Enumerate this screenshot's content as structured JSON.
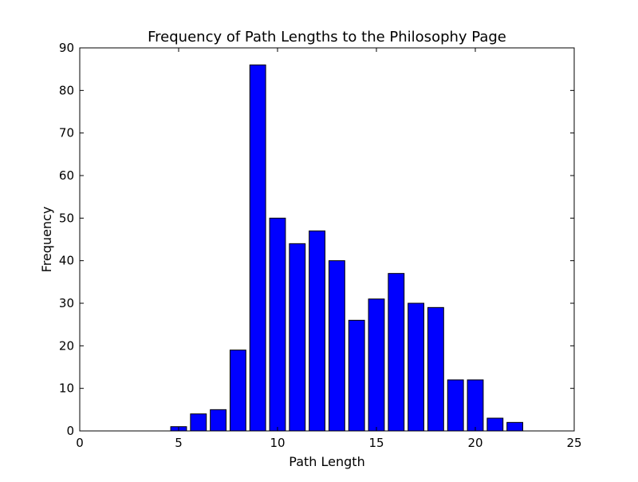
{
  "chart_data": {
    "type": "bar",
    "title": "Frequency of Path Lengths to the Philosophy Page",
    "xlabel": "Path Length",
    "ylabel": "Frequency",
    "x": [
      5,
      6,
      7,
      8,
      9,
      10,
      11,
      12,
      13,
      14,
      15,
      16,
      17,
      18,
      19,
      20,
      21,
      22
    ],
    "values": [
      1,
      4,
      5,
      19,
      86,
      50,
      44,
      47,
      40,
      26,
      31,
      37,
      30,
      29,
      12,
      12,
      3,
      2
    ],
    "xlim": [
      0,
      25
    ],
    "ylim": [
      0,
      90
    ],
    "xticks": [
      0,
      5,
      10,
      15,
      20,
      25
    ],
    "yticks": [
      0,
      10,
      20,
      30,
      40,
      50,
      60,
      70,
      80,
      90
    ],
    "bar_color": "#0000ff",
    "edge_color": "#000000",
    "grid": false,
    "legend": "none"
  }
}
